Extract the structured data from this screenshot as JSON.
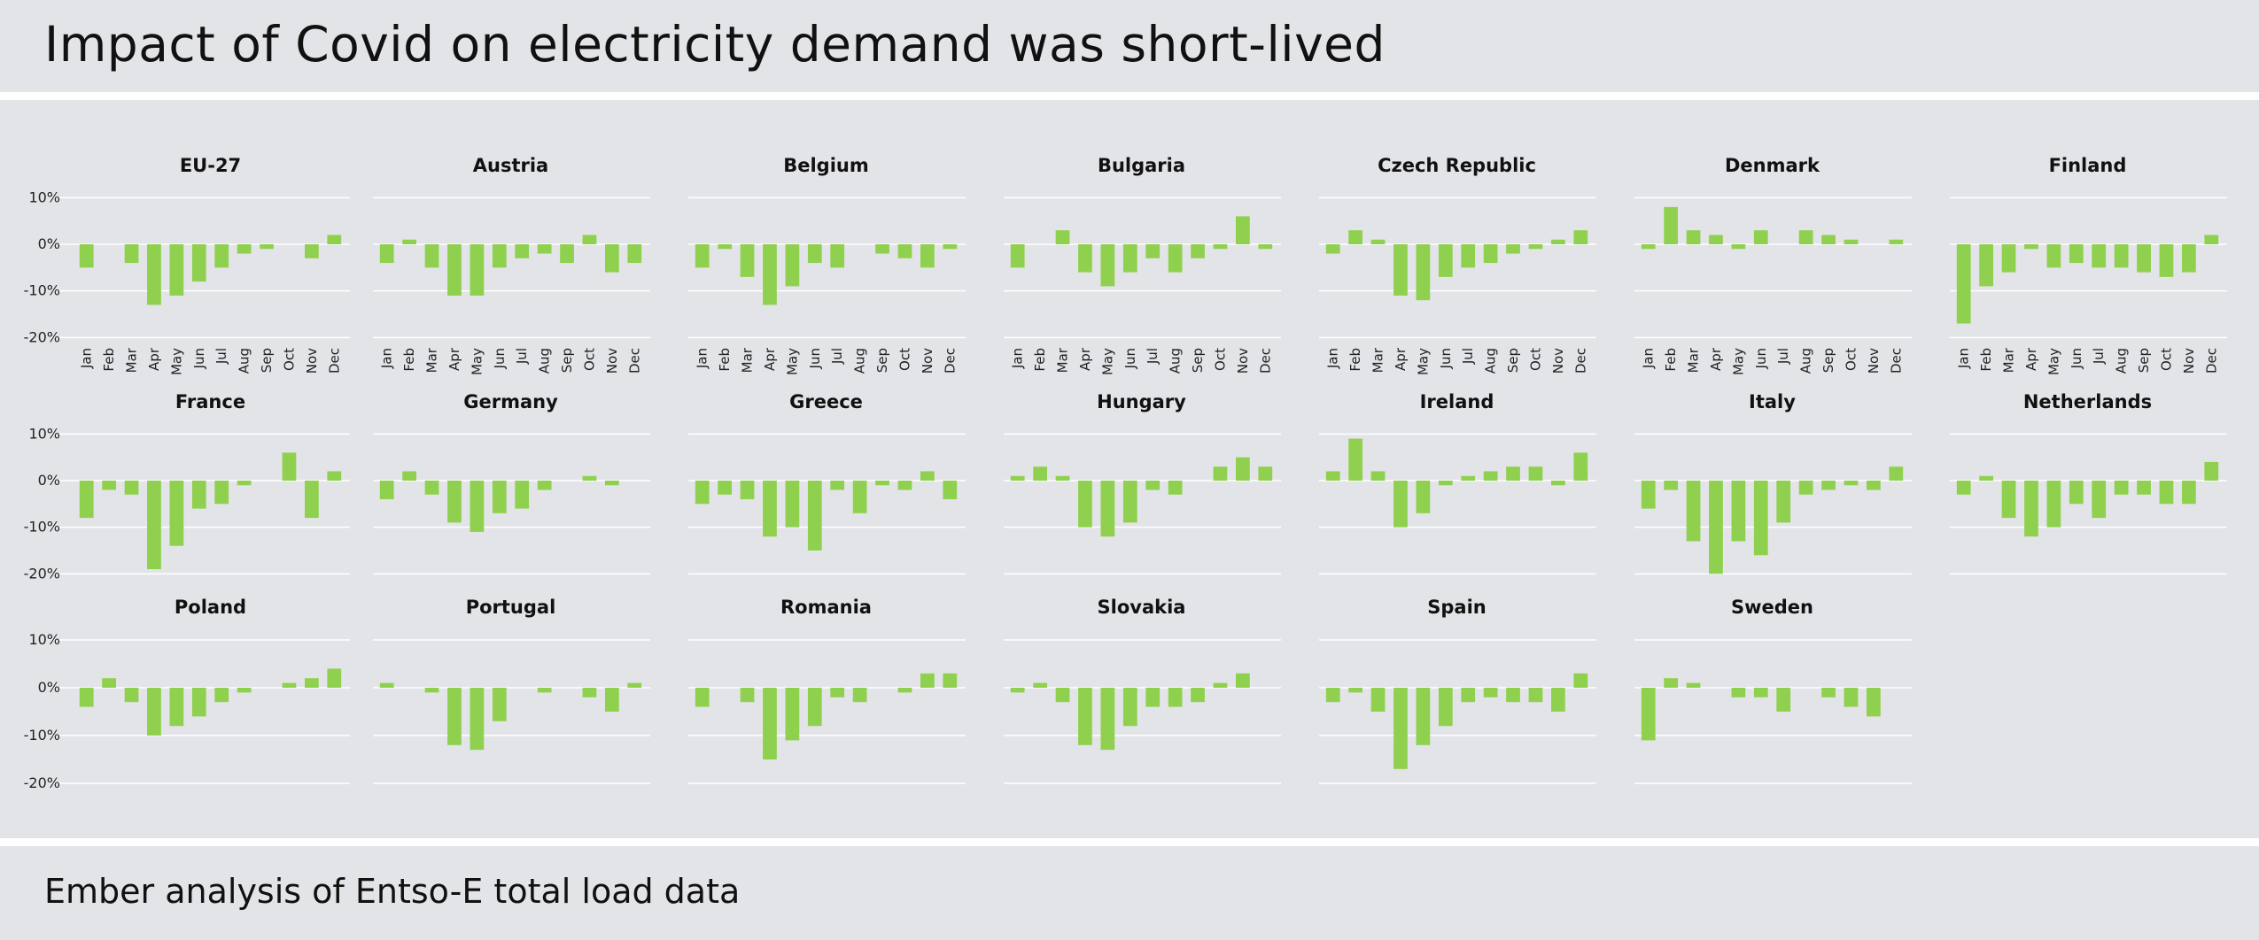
{
  "title": "Impact of Covid on electricity demand was short-lived",
  "footer": "Ember analysis of Entso-E total load data",
  "colors": {
    "bar": "#8fd14f",
    "grid": "#ffffff",
    "background": "#e3e4e8"
  },
  "chart_data": {
    "type": "bar",
    "layout": "small-multiples",
    "categories": [
      "Jan",
      "Feb",
      "Mar",
      "Apr",
      "May",
      "Jun",
      "Jul",
      "Aug",
      "Sep",
      "Oct",
      "Nov",
      "Dec"
    ],
    "yticks": [
      "10%",
      "0%",
      "-10%",
      "-20%"
    ],
    "ylim": [
      -20,
      10
    ],
    "grid": true,
    "panels": [
      {
        "name": "EU-27",
        "values": [
          -5,
          0,
          -4,
          -13,
          -11,
          -8,
          -5,
          -2,
          -1,
          0,
          -3,
          2
        ]
      },
      {
        "name": "Austria",
        "values": [
          -4,
          1,
          -5,
          -11,
          -11,
          -5,
          -3,
          -2,
          -4,
          2,
          -6,
          -4
        ]
      },
      {
        "name": "Belgium",
        "values": [
          -5,
          -1,
          -7,
          -13,
          -9,
          -4,
          -5,
          0,
          -2,
          -3,
          -5,
          -1
        ]
      },
      {
        "name": "Bulgaria",
        "values": [
          -5,
          0,
          3,
          -6,
          -9,
          -6,
          -3,
          -6,
          -3,
          -1,
          6,
          -1
        ]
      },
      {
        "name": "Czech Republic",
        "values": [
          -2,
          3,
          1,
          -11,
          -12,
          -7,
          -5,
          -4,
          -2,
          -1,
          1,
          3
        ]
      },
      {
        "name": "Denmark",
        "values": [
          -1,
          8,
          3,
          2,
          -1,
          3,
          0,
          3,
          2,
          1,
          0,
          1
        ]
      },
      {
        "name": "Finland",
        "values": [
          -17,
          -9,
          -6,
          -1,
          -5,
          -4,
          -5,
          -5,
          -6,
          -7,
          -6,
          2
        ]
      },
      {
        "name": "France",
        "values": [
          -8,
          -2,
          -3,
          -19,
          -14,
          -6,
          -5,
          -1,
          0,
          6,
          -8,
          2
        ]
      },
      {
        "name": "Germany",
        "values": [
          -4,
          2,
          -3,
          -9,
          -11,
          -7,
          -6,
          -2,
          0,
          1,
          -1,
          0
        ]
      },
      {
        "name": "Greece",
        "values": [
          -5,
          -3,
          -4,
          -12,
          -10,
          -15,
          -2,
          -7,
          -1,
          -2,
          2,
          -4
        ]
      },
      {
        "name": "Hungary",
        "values": [
          1,
          3,
          1,
          -10,
          -12,
          -9,
          -2,
          -3,
          0,
          3,
          5,
          3
        ]
      },
      {
        "name": "Ireland",
        "values": [
          2,
          9,
          2,
          -10,
          -7,
          -1,
          1,
          2,
          3,
          3,
          -1,
          6
        ]
      },
      {
        "name": "Italy",
        "values": [
          -6,
          -2,
          -13,
          -20,
          -13,
          -16,
          -9,
          -3,
          -2,
          -1,
          -2,
          3
        ]
      },
      {
        "name": "Netherlands",
        "values": [
          -3,
          1,
          -8,
          -12,
          -10,
          -5,
          -8,
          -3,
          -3,
          -5,
          -5,
          4
        ]
      },
      {
        "name": "Poland",
        "values": [
          -4,
          2,
          -3,
          -10,
          -8,
          -6,
          -3,
          -1,
          0,
          1,
          2,
          4
        ]
      },
      {
        "name": "Portugal",
        "values": [
          1,
          0,
          -1,
          -12,
          -13,
          -7,
          0,
          -1,
          0,
          -2,
          -5,
          1
        ]
      },
      {
        "name": "Romania",
        "values": [
          -4,
          0,
          -3,
          -15,
          -11,
          -8,
          -2,
          -3,
          0,
          -1,
          3,
          3
        ]
      },
      {
        "name": "Slovakia",
        "values": [
          -1,
          1,
          -3,
          -12,
          -13,
          -8,
          -4,
          -4,
          -3,
          1,
          3,
          0
        ]
      },
      {
        "name": "Spain",
        "values": [
          -3,
          -1,
          -5,
          -17,
          -12,
          -8,
          -3,
          -2,
          -3,
          -3,
          -5,
          3
        ]
      },
      {
        "name": "Sweden",
        "values": [
          -11,
          2,
          1,
          0,
          -2,
          -2,
          -5,
          0,
          -2,
          -4,
          -6,
          0
        ]
      }
    ]
  }
}
